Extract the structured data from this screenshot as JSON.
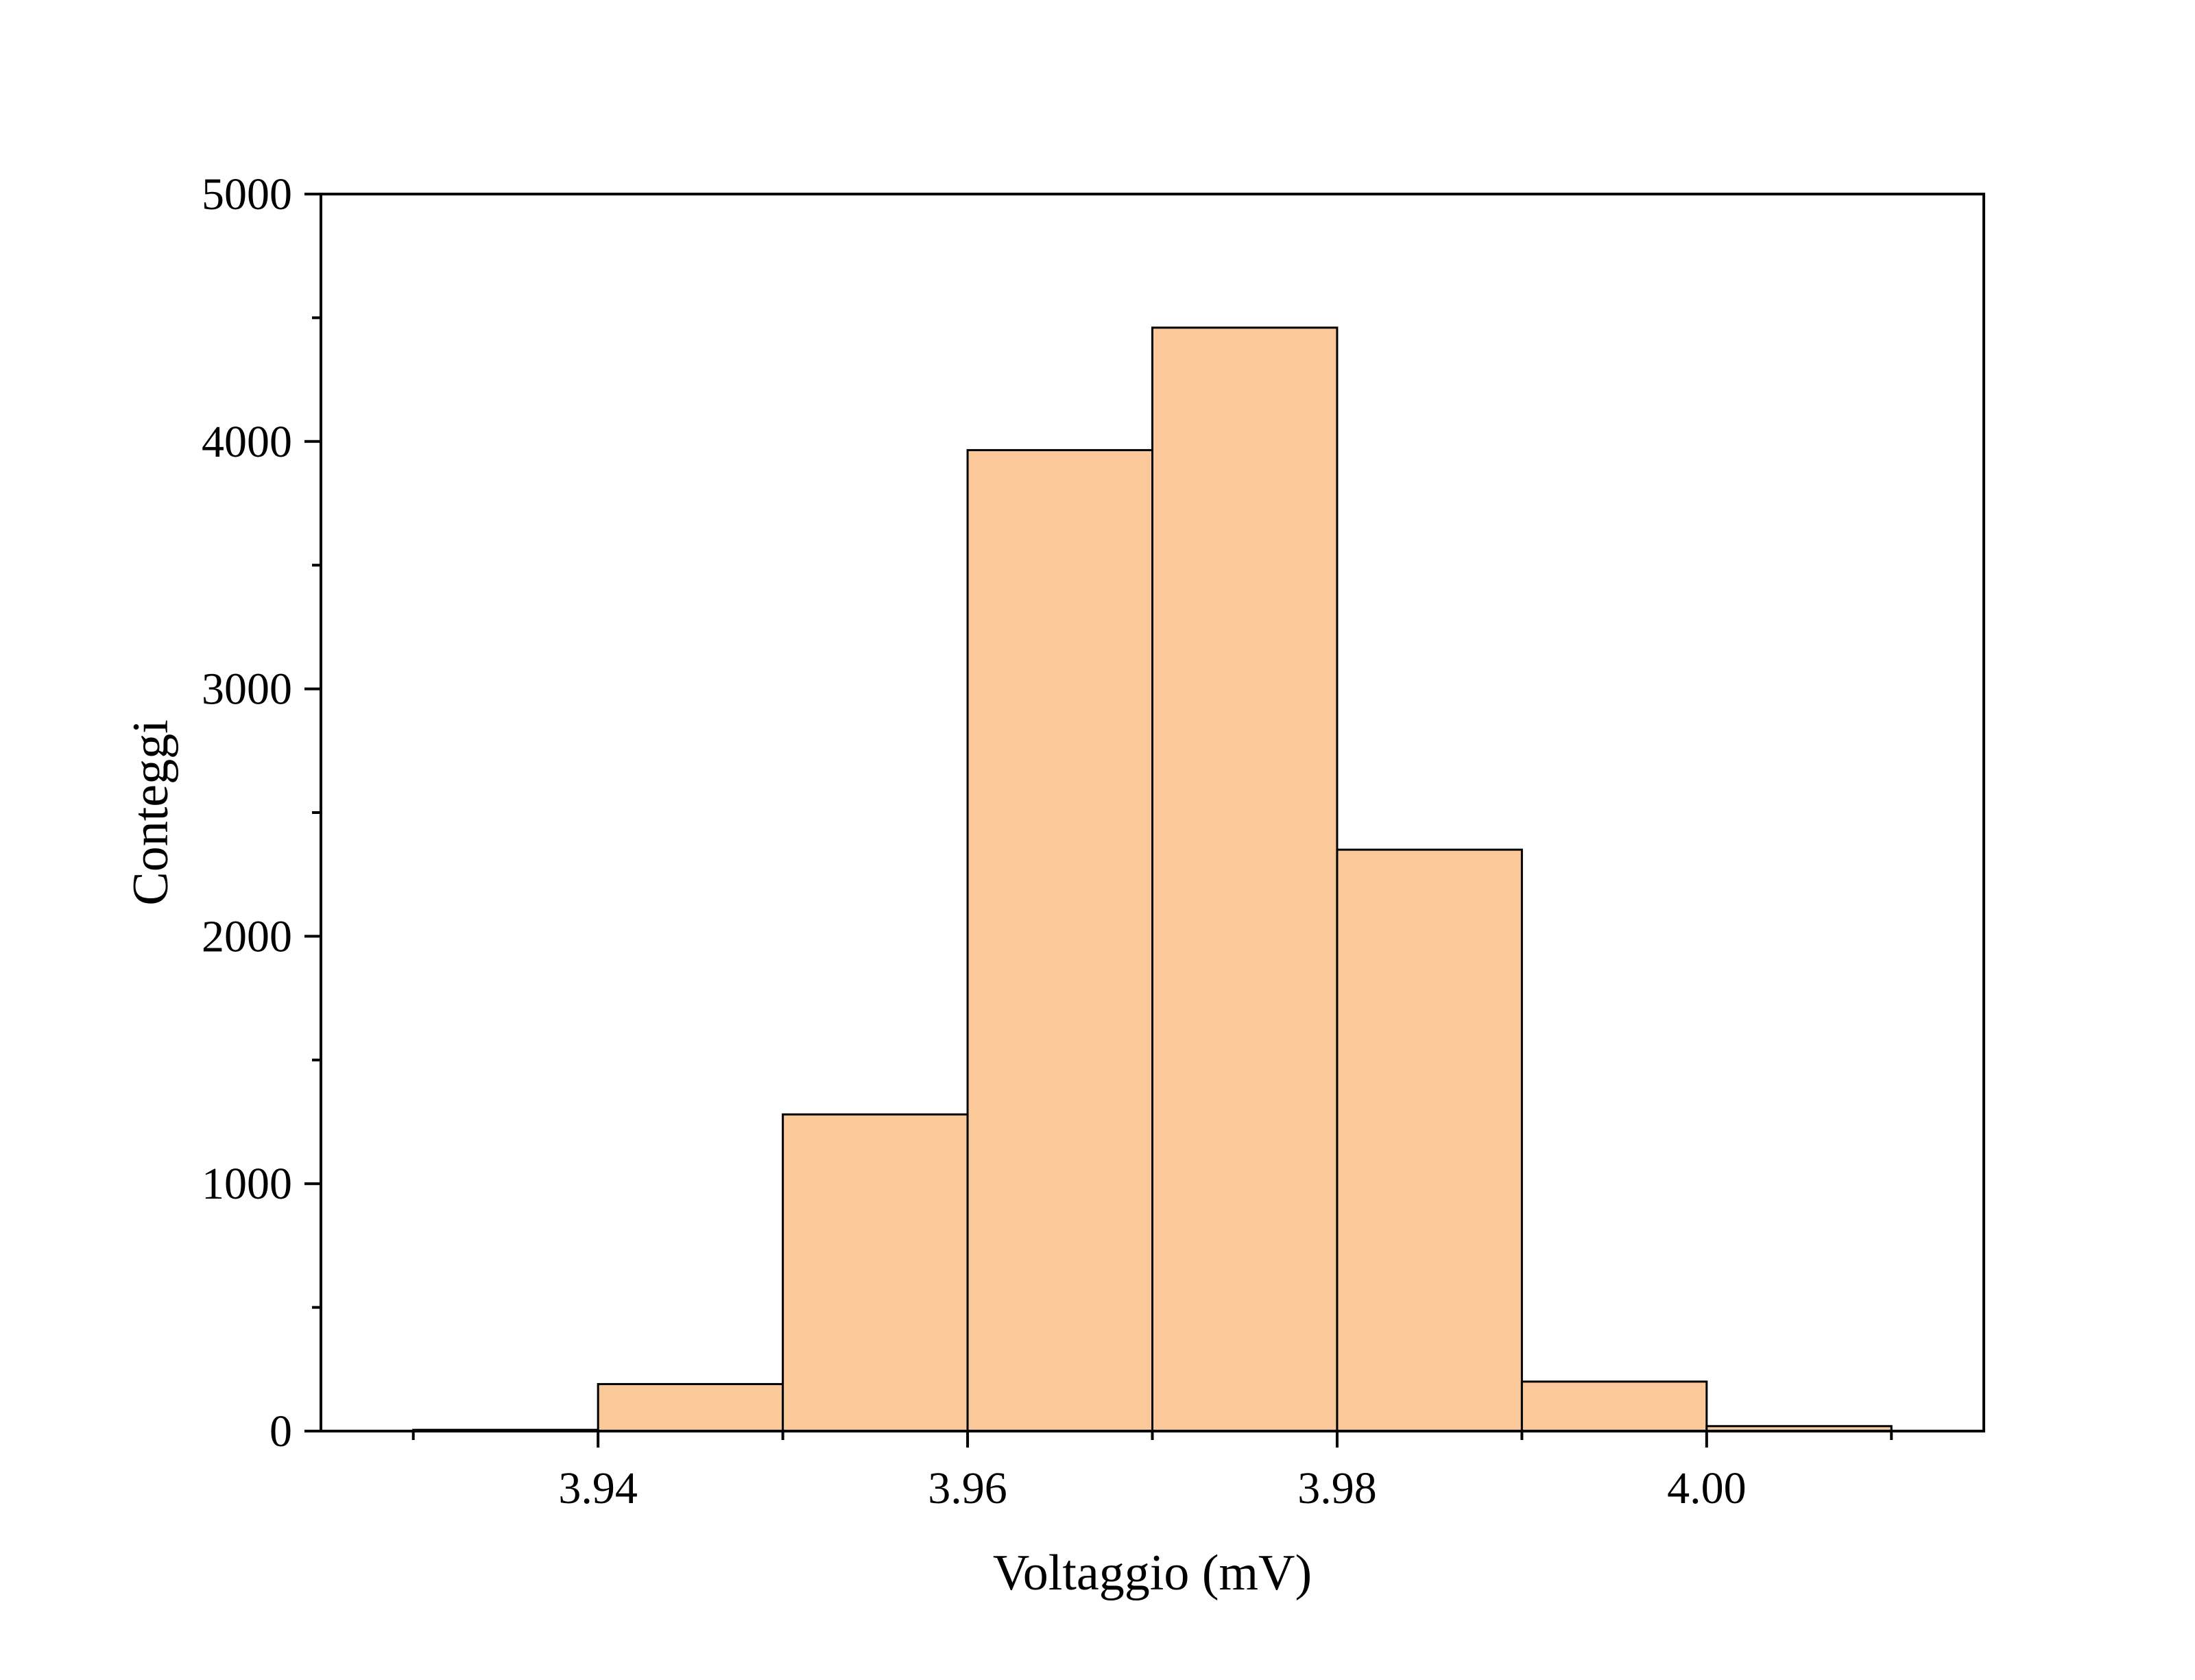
{
  "chart_data": {
    "type": "bar",
    "xlabel": "Voltaggio (mV)",
    "ylabel": "Conteggi",
    "xlim": [
      3.925,
      4.015
    ],
    "ylim": [
      0,
      5000
    ],
    "x_ticks": [
      3.94,
      3.96,
      3.98,
      4.0
    ],
    "x_tick_labels": [
      "3.94",
      "3.96",
      "3.98",
      "4.00"
    ],
    "y_ticks": [
      0,
      1000,
      2000,
      3000,
      4000,
      5000
    ],
    "y_tick_labels": [
      "0",
      "1000",
      "2000",
      "3000",
      "4000",
      "5000"
    ],
    "bin_width": 0.01,
    "bars": [
      {
        "x": 3.935,
        "value": 5
      },
      {
        "x": 3.945,
        "value": 190
      },
      {
        "x": 3.955,
        "value": 1280
      },
      {
        "x": 3.965,
        "value": 3965
      },
      {
        "x": 3.975,
        "value": 4460
      },
      {
        "x": 3.985,
        "value": 2350
      },
      {
        "x": 3.995,
        "value": 200
      },
      {
        "x": 4.005,
        "value": 20
      }
    ],
    "bar_color": "#FBC899",
    "bar_edge_color": "#000000",
    "grid": false,
    "legend": "none"
  }
}
